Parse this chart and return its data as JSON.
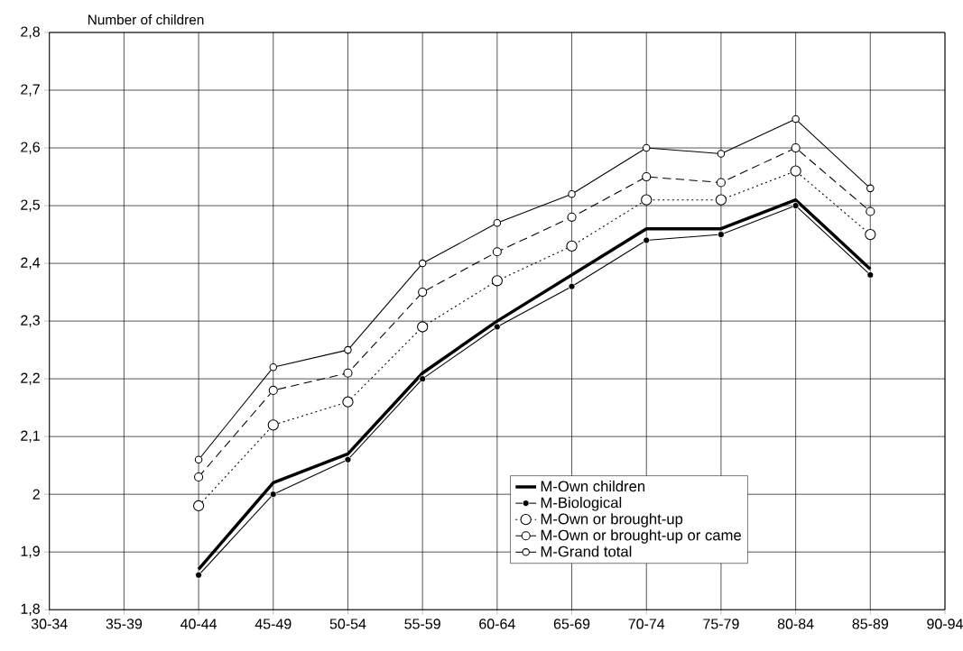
{
  "chart_data": {
    "type": "line",
    "ylabel": "Number of children",
    "categories": [
      "30-34",
      "35-39",
      "40-44",
      "45-49",
      "50-54",
      "55-59",
      "60-64",
      "65-69",
      "70-74",
      "75-79",
      "80-84",
      "85-89",
      "90-94"
    ],
    "ylim": [
      1.8,
      2.8
    ],
    "yticks": [
      {
        "value": 1.8,
        "label": "1,8"
      },
      {
        "value": 1.9,
        "label": "1,9"
      },
      {
        "value": 2,
        "label": "2"
      },
      {
        "value": 2.1,
        "label": "2,1"
      },
      {
        "value": 2.2,
        "label": "2,2"
      },
      {
        "value": 2.3,
        "label": "2,3"
      },
      {
        "value": 2.4,
        "label": "2,4"
      },
      {
        "value": 2.5,
        "label": "2,5"
      },
      {
        "value": 2.6,
        "label": "2,6"
      },
      {
        "value": 2.7,
        "label": "2,7"
      },
      {
        "value": 2.8,
        "label": "2,8"
      }
    ],
    "grid": true,
    "legend": "bottom right",
    "series": [
      {
        "name": "M-Own children",
        "color": "#000000",
        "line_style": "solid",
        "marker": "none",
        "values": [
          null,
          null,
          1.87,
          2.02,
          2.07,
          2.21,
          2.3,
          2.38,
          2.46,
          2.46,
          2.51,
          2.39,
          null
        ]
      },
      {
        "name": "M-Biological",
        "color": "#000000",
        "line_style": "solid",
        "marker": "circle",
        "values": [
          null,
          null,
          1.86,
          2.0,
          2.06,
          2.2,
          2.29,
          2.36,
          2.44,
          2.45,
          2.5,
          2.38,
          null
        ]
      },
      {
        "name": "M-Own or brought-up",
        "color": "#000000",
        "line_style": "dotted",
        "marker": "circle",
        "values": [
          null,
          null,
          1.98,
          2.12,
          2.16,
          2.29,
          2.37,
          2.43,
          2.51,
          2.51,
          2.56,
          2.45,
          null
        ]
      },
      {
        "name": "M-Own or brought-up or came",
        "color": "#000000",
        "line_style": "dashed",
        "marker": "circle",
        "values": [
          null,
          null,
          2.03,
          2.18,
          2.21,
          2.35,
          2.42,
          2.48,
          2.55,
          2.54,
          2.6,
          2.49,
          null
        ]
      },
      {
        "name": "M-Grand total",
        "color": "#000000",
        "line_style": "solid",
        "marker": "circle",
        "values": [
          null,
          null,
          2.06,
          2.22,
          2.25,
          2.4,
          2.47,
          2.52,
          2.6,
          2.59,
          2.65,
          2.53,
          null
        ]
      }
    ]
  }
}
